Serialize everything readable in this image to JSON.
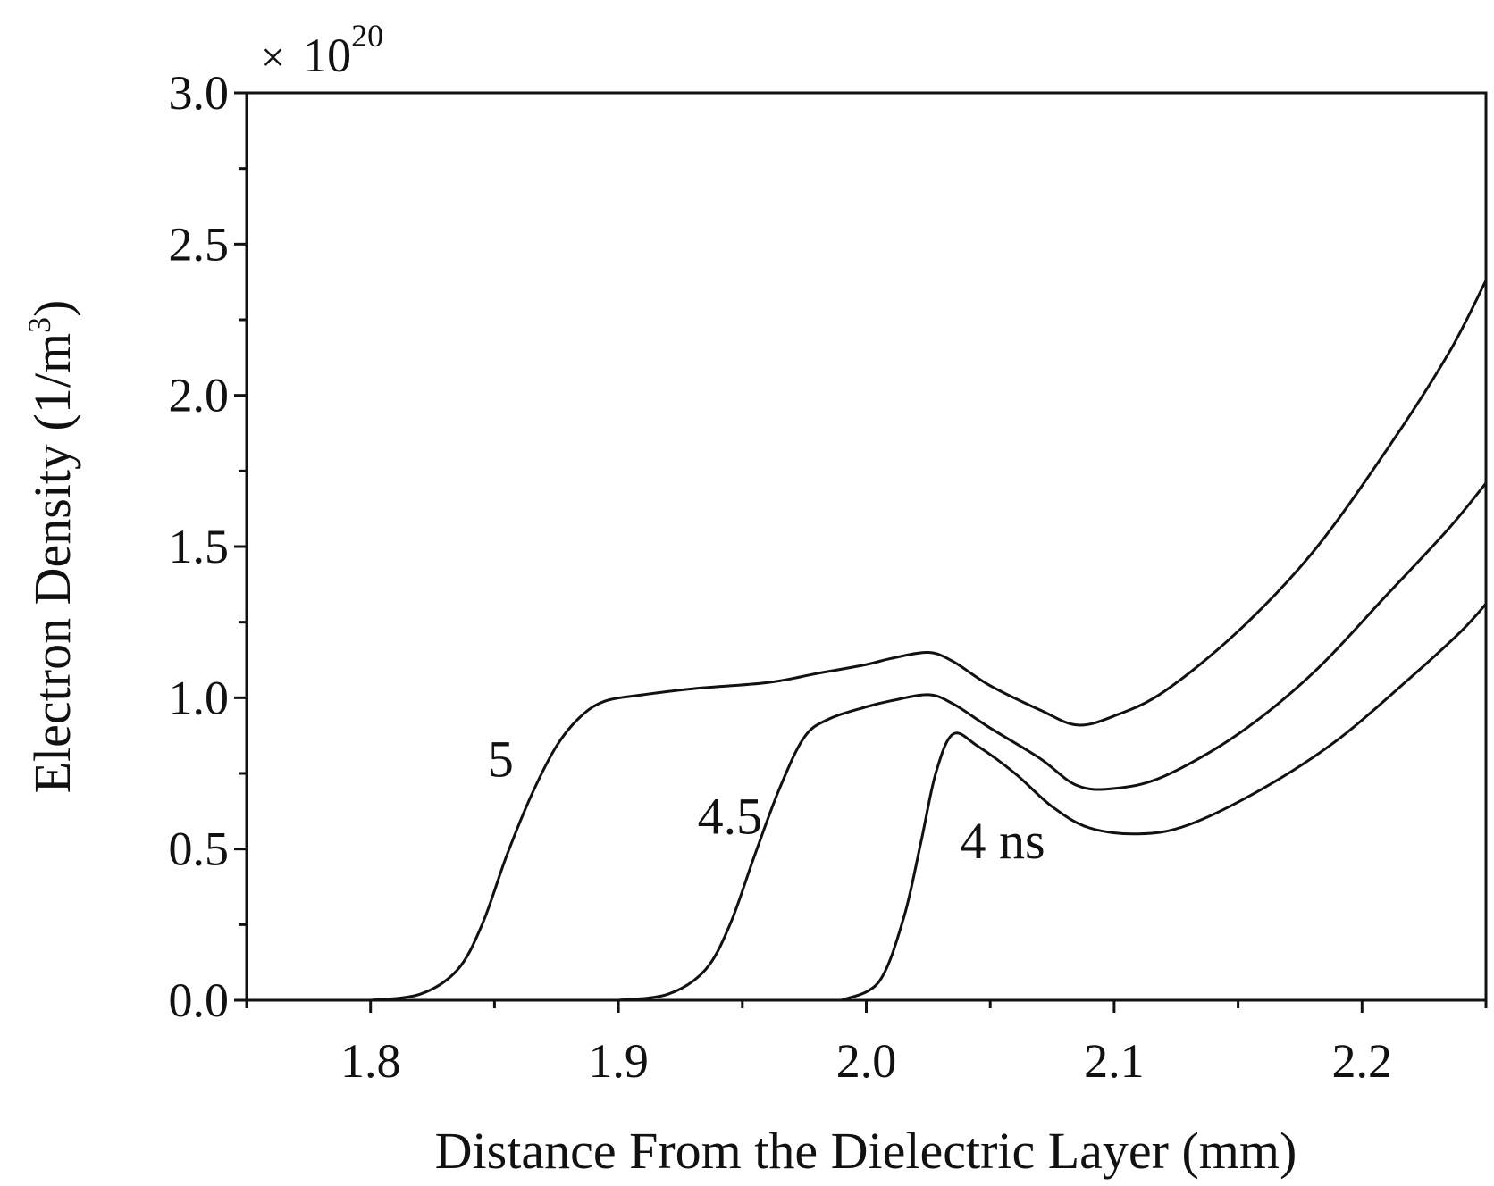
{
  "chart_data": {
    "type": "line",
    "title": "",
    "xlabel": "Distance From the Dielectric Layer (mm)",
    "ylabel": "Electron Density (1/m",
    "ylabel_superscript": "3",
    "ylabel_close": ")",
    "y_multiplier": {
      "sign": "×",
      "base": "10",
      "exponent": "20"
    },
    "xlim": [
      1.75,
      2.25
    ],
    "ylim": [
      0.0,
      3.0
    ],
    "x_major_ticks": [
      1.8,
      1.9,
      2.0,
      2.1,
      2.2
    ],
    "x_tick_labels": [
      "1.8",
      "1.9",
      "2.0",
      "2.1",
      "2.2"
    ],
    "x_minor_ticks": [
      1.75,
      1.85,
      1.95,
      2.05,
      2.15,
      2.25
    ],
    "y_major_ticks": [
      0.0,
      0.5,
      1.0,
      1.5,
      2.0,
      2.5,
      3.0
    ],
    "y_tick_labels": [
      "0.0",
      "0.5",
      "1.0",
      "1.5",
      "2.0",
      "2.5",
      "3.0"
    ],
    "y_minor_ticks": [
      0.25,
      0.75,
      1.25,
      1.75,
      2.25,
      2.75
    ],
    "grid": false,
    "series": [
      {
        "label": "5",
        "label_at": [
          1.8525,
          0.74
        ],
        "x": [
          1.8,
          1.82,
          1.835,
          1.845,
          1.855,
          1.865,
          1.875,
          1.885,
          1.895,
          1.91,
          1.93,
          1.96,
          1.98,
          2.0,
          2.01,
          2.025,
          2.035,
          2.05,
          2.07,
          2.085,
          2.1,
          2.12,
          2.15,
          2.18,
          2.21,
          2.235,
          2.25
        ],
        "y": [
          0.0,
          0.02,
          0.1,
          0.25,
          0.48,
          0.68,
          0.84,
          0.94,
          0.99,
          1.01,
          1.03,
          1.05,
          1.08,
          1.11,
          1.13,
          1.15,
          1.12,
          1.04,
          0.96,
          0.91,
          0.94,
          1.02,
          1.22,
          1.48,
          1.82,
          2.14,
          2.38
        ]
      },
      {
        "label": "4.5",
        "label_at": [
          1.945,
          0.55
        ],
        "x": [
          1.9,
          1.92,
          1.935,
          1.945,
          1.955,
          1.965,
          1.975,
          1.985,
          2.0,
          2.01,
          2.025,
          2.035,
          2.05,
          2.07,
          2.085,
          2.1,
          2.12,
          2.15,
          2.18,
          2.21,
          2.235,
          2.25
        ],
        "y": [
          0.0,
          0.02,
          0.1,
          0.25,
          0.48,
          0.7,
          0.87,
          0.93,
          0.97,
          0.99,
          1.01,
          0.98,
          0.9,
          0.8,
          0.71,
          0.7,
          0.74,
          0.88,
          1.08,
          1.34,
          1.56,
          1.71
        ]
      },
      {
        "label": "4 ns",
        "label_at": [
          2.055,
          0.47
        ],
        "x": [
          1.99,
          2.005,
          2.015,
          2.022,
          2.028,
          2.035,
          2.045,
          2.06,
          2.075,
          2.09,
          2.11,
          2.13,
          2.16,
          2.19,
          2.22,
          2.24,
          2.25
        ],
        "y": [
          0.0,
          0.06,
          0.27,
          0.52,
          0.75,
          0.88,
          0.84,
          0.75,
          0.64,
          0.57,
          0.55,
          0.58,
          0.7,
          0.86,
          1.07,
          1.22,
          1.31
        ]
      }
    ]
  }
}
